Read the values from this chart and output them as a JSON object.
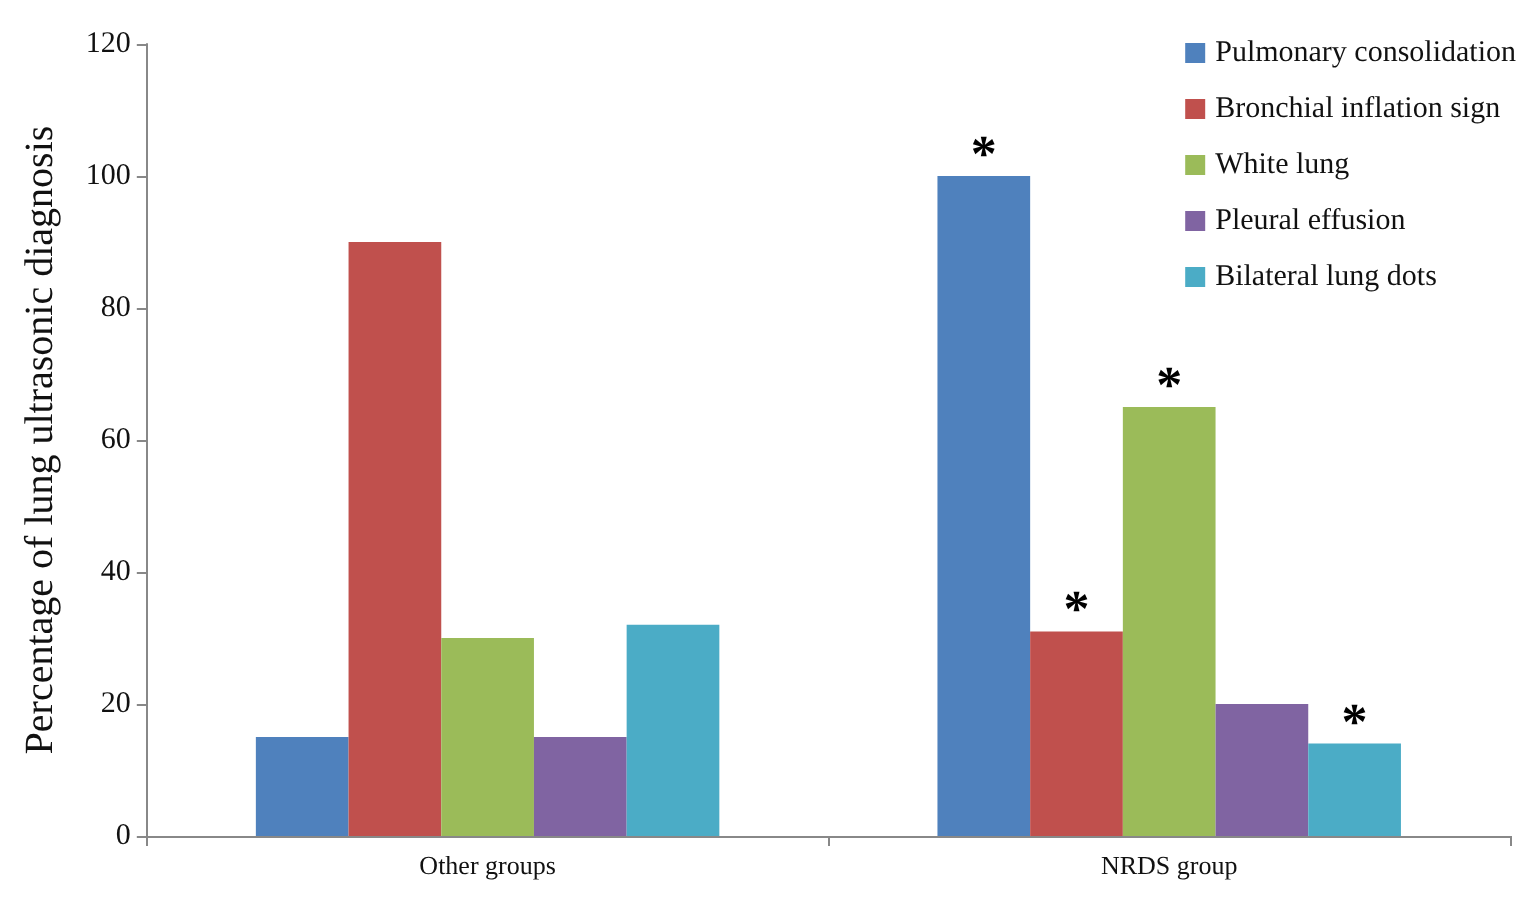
{
  "chart_data": {
    "type": "bar",
    "ylabel": "Percentage of lung ultrasonic diagnosis",
    "categories": [
      "Other groups",
      "NRDS group"
    ],
    "series": [
      {
        "name": "Pulmonary consolidation",
        "color": "#4f81bd",
        "values": [
          15,
          100
        ],
        "value_labels": [
          null,
          "*"
        ]
      },
      {
        "name": "Bronchial inflation sign",
        "color": "#c0504d",
        "values": [
          90,
          31
        ],
        "value_labels": [
          null,
          "*"
        ]
      },
      {
        "name": "White lung",
        "color": "#9bbb59",
        "values": [
          30,
          65
        ],
        "value_labels": [
          null,
          "*"
        ]
      },
      {
        "name": "Pleural effusion",
        "color": "#8064a2",
        "values": [
          15,
          20
        ]
      },
      {
        "name": "Bilateral lung dots",
        "color": "#4bacc6",
        "values": [
          32,
          14
        ],
        "value_labels": [
          null,
          "*"
        ]
      }
    ],
    "ylim": [
      0,
      120
    ],
    "yticks": [
      0,
      20,
      40,
      60,
      80,
      100,
      120
    ],
    "grid": false,
    "legend": "top right"
  }
}
